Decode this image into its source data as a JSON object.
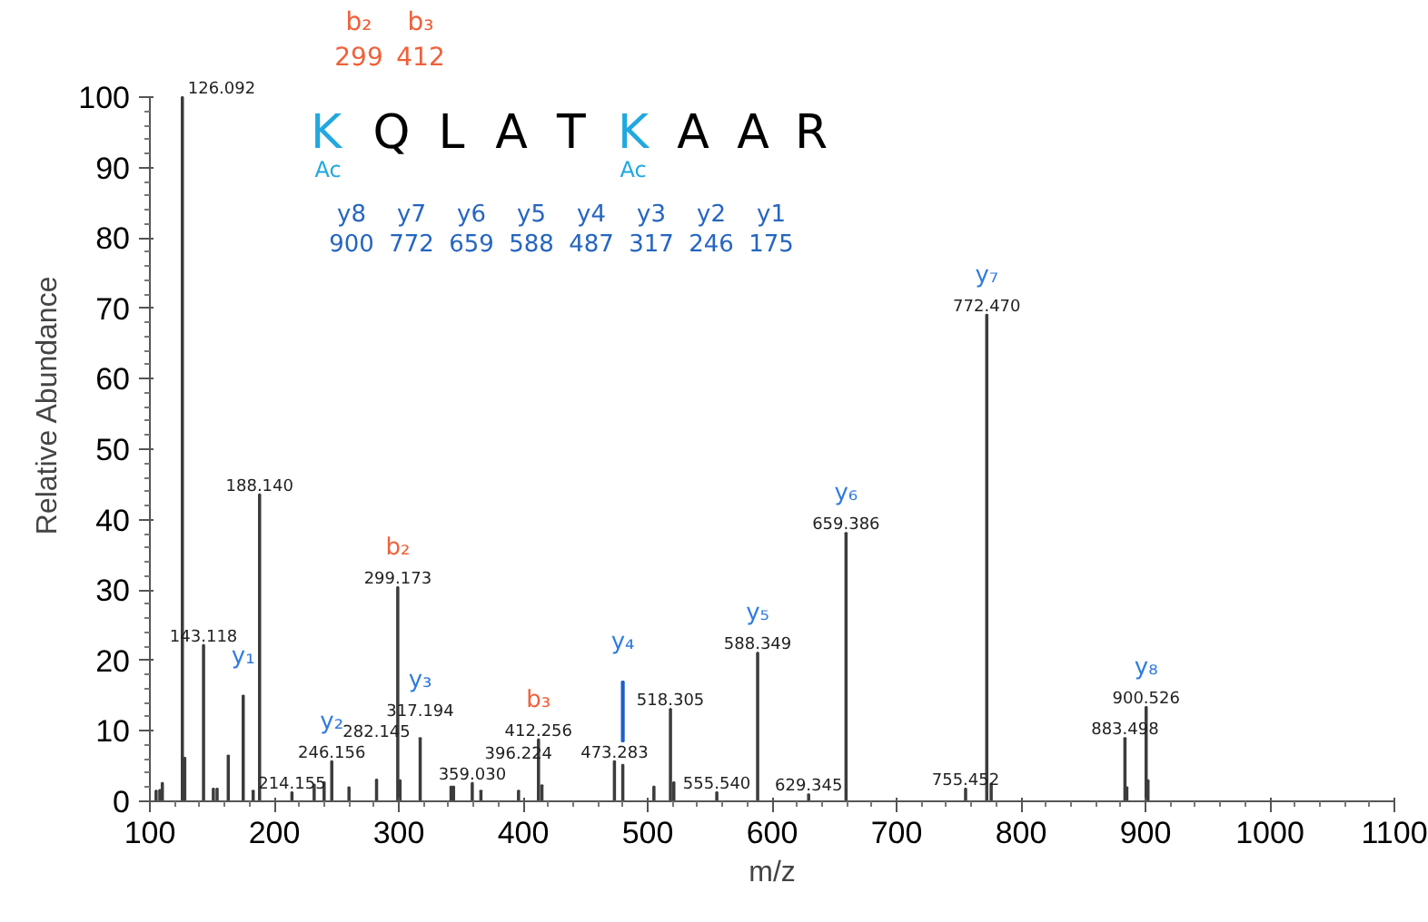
{
  "chart_data": {
    "type": "bar",
    "xlabel": "m/z",
    "ylabel": "Relative Abundance",
    "xlim": [
      100,
      1100
    ],
    "ylim": [
      0,
      100
    ],
    "xticks": [
      100,
      200,
      300,
      400,
      500,
      600,
      700,
      800,
      900,
      1000,
      1100
    ],
    "yticks": [
      0,
      10,
      20,
      30,
      40,
      50,
      60,
      70,
      80,
      90,
      100
    ],
    "series": [
      {
        "color": "#3c3c3c",
        "x": [
          105,
          108,
          110,
          126.092,
          128,
          143.118,
          151,
          154,
          163,
          175,
          183,
          188.14,
          214.155,
          232,
          240,
          246.156,
          260,
          282.145,
          299.173,
          301,
          317.194,
          342,
          344,
          359.03,
          366,
          396.224,
          412.256,
          415,
          473.283,
          480,
          505,
          518.305,
          521,
          555.54,
          588.349,
          629.345,
          659.386,
          755.452,
          772.47,
          776,
          883.498,
          885,
          900.526,
          902
        ],
        "values": [
          1.5,
          1.6,
          2.6,
          100,
          6.2,
          22.2,
          1.8,
          1.8,
          6.5,
          15,
          1.5,
          43.6,
          1.3,
          2.4,
          2.7,
          5.7,
          2.0,
          3.1,
          30.4,
          3.0,
          9.0,
          2.1,
          2.1,
          2.6,
          1.5,
          1.5,
          8.8,
          2.3,
          5.7,
          5.2,
          2.1,
          13.1,
          2.7,
          1.3,
          21.1,
          1.0,
          38.1,
          1.8,
          69.1,
          2.5,
          9.0,
          2.0,
          13.4,
          3.0
        ]
      },
      {
        "color": "#1f5fc8",
        "x": [
          480
        ],
        "values": [
          8.5
        ],
        "base": [
          8.5
        ]
      }
    ],
    "annotations": [
      "K",
      "Q",
      "L",
      "A",
      "T",
      "K",
      "A",
      "A",
      "R",
      "Ac",
      "Ac",
      "b₂",
      "299",
      "b₃",
      "412",
      "y8",
      "900",
      "y7",
      "772",
      "y6",
      "659",
      "y5",
      "588",
      "y4",
      "487",
      "y3",
      "317",
      "y2",
      "246",
      "y1",
      "175",
      {
        "text": "b₂",
        "x": 299.173,
        "y": 30.4
      },
      {
        "text": "b₃",
        "x": 412.256,
        "y": 8.8
      },
      {
        "text": "y₁",
        "x": 175,
        "y": 15
      },
      {
        "text": "y₂",
        "x": 246.156,
        "y": 5.7
      },
      {
        "text": "y₃",
        "x": 317.194,
        "y": 9.0
      },
      {
        "text": "y₄",
        "x": 480,
        "y": 17
      },
      {
        "text": "y₅",
        "x": 588.349,
        "y": 21.1
      },
      {
        "text": "y₆",
        "x": 659.386,
        "y": 38.1
      },
      {
        "text": "y₇",
        "x": 772.47,
        "y": 69.1
      },
      {
        "text": "y₈",
        "x": 900.526,
        "y": 13.4
      },
      {
        "text": "126.092",
        "x": 126.092,
        "y": 100
      },
      {
        "text": "143.118",
        "x": 143.118,
        "y": 22.2
      },
      {
        "text": "188.140",
        "x": 188.14,
        "y": 43.6
      },
      {
        "text": "214.155",
        "x": 214.155,
        "y": 1.3
      },
      {
        "text": "246.156",
        "x": 246.156,
        "y": 5.7
      },
      {
        "text": "282.145",
        "x": 282.145,
        "y": 3.1
      },
      {
        "text": "299.173",
        "x": 299.173,
        "y": 30.4
      },
      {
        "text": "317.194",
        "x": 317.194,
        "y": 9.0
      },
      {
        "text": "359.030",
        "x": 359.03,
        "y": 2.6
      },
      {
        "text": "396.224",
        "x": 396.224,
        "y": 1.5
      },
      {
        "text": "412.256",
        "x": 412.256,
        "y": 8.8
      },
      {
        "text": "473.283",
        "x": 473.283,
        "y": 5.7
      },
      {
        "text": "518.305",
        "x": 518.305,
        "y": 13.1
      },
      {
        "text": "555.540",
        "x": 555.54,
        "y": 1.3
      },
      {
        "text": "588.349",
        "x": 588.349,
        "y": 21.1
      },
      {
        "text": "629.345",
        "x": 629.345,
        "y": 1.0
      },
      {
        "text": "659.386",
        "x": 659.386,
        "y": 38.1
      },
      {
        "text": "755.452",
        "x": 755.452,
        "y": 1.8
      },
      {
        "text": "772.470",
        "x": 772.47,
        "y": 69.1
      },
      {
        "text": "883.498",
        "x": 883.498,
        "y": 9.0
      },
      {
        "text": "900.526",
        "x": 900.526,
        "y": 13.4
      }
    ]
  }
}
